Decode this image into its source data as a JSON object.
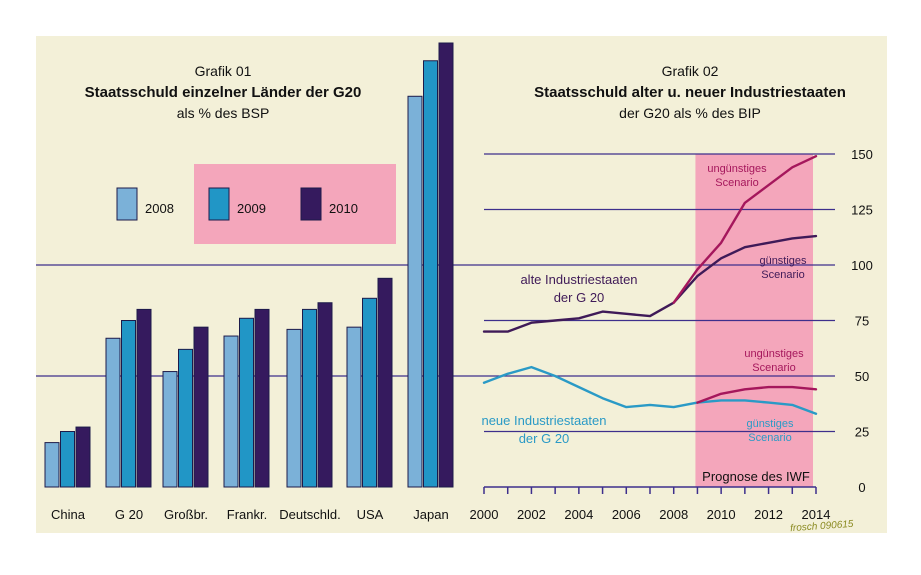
{
  "colors": {
    "background": "#f3f0d8",
    "grid": "#3d2f8c",
    "bar2008": "#7bb1d8",
    "bar2009": "#2196c6",
    "bar2010": "#351a5e",
    "bar_edge": "#1d1b4a",
    "prognosis": "#f4a6bb",
    "old_line": "#3f1a58",
    "new_line": "#2a9ac6",
    "bad_scenario": "#a5175c",
    "text": "#111111"
  },
  "chart_data": [
    {
      "type": "bar",
      "number": "Grafik 01",
      "title": "Staatsschuld einzelner Länder der G20",
      "subtitle": "als % des BSP",
      "categories": [
        "China",
        "G 20",
        "Großbr.",
        "Frankr.",
        "Deutschld.",
        "USA",
        "Japan"
      ],
      "series": [
        {
          "name": "2008",
          "color": "#7bb1d8",
          "values": [
            20,
            67,
            52,
            68,
            71,
            72,
            176
          ]
        },
        {
          "name": "2009",
          "color": "#2196c6",
          "values": [
            25,
            75,
            62,
            76,
            80,
            85,
            192
          ]
        },
        {
          "name": "2010",
          "color": "#351a5e",
          "values": [
            27,
            80,
            72,
            80,
            83,
            94,
            200
          ]
        }
      ],
      "ylim": [
        0,
        200
      ],
      "gridlines": [
        50,
        100
      ],
      "legend_position": "top-center"
    },
    {
      "type": "line",
      "number": "Grafik 02",
      "title": "Staatsschuld alter u. neuer Industriestaaten",
      "subtitle": "der G20 als % des BIP",
      "x_ticks": [
        "2000",
        "2002",
        "2004",
        "2006",
        "2008",
        "2010",
        "2012",
        "2014"
      ],
      "y_ticks": [
        "0",
        "25",
        "50",
        "75",
        "100",
        "125",
        "150"
      ],
      "xlim": [
        2000,
        2014
      ],
      "ylim": [
        0,
        150
      ],
      "series": [
        {
          "name": "alte Industriestaaten der G 20 (günstiges Scenario)",
          "color": "#3f1a58",
          "points": [
            [
              2000,
              70
            ],
            [
              2001,
              70
            ],
            [
              2002,
              74
            ],
            [
              2003,
              75
            ],
            [
              2004,
              76
            ],
            [
              2005,
              79
            ],
            [
              2006,
              78
            ],
            [
              2007,
              77
            ],
            [
              2008,
              83
            ],
            [
              2009,
              95
            ],
            [
              2010,
              103
            ],
            [
              2011,
              108
            ],
            [
              2012,
              110
            ],
            [
              2013,
              112
            ],
            [
              2014,
              113
            ]
          ]
        },
        {
          "name": "alte Industriestaaten ungünstiges Scenario",
          "color": "#a5175c",
          "points": [
            [
              2008,
              83
            ],
            [
              2009,
              98
            ],
            [
              2010,
              110
            ],
            [
              2011,
              128
            ],
            [
              2012,
              136
            ],
            [
              2013,
              144
            ],
            [
              2014,
              149
            ]
          ]
        },
        {
          "name": "neue Industriestaaten der G 20 (günstiges Scenario)",
          "color": "#2a9ac6",
          "points": [
            [
              2000,
              47
            ],
            [
              2001,
              51
            ],
            [
              2002,
              54
            ],
            [
              2003,
              50
            ],
            [
              2004,
              45
            ],
            [
              2005,
              40
            ],
            [
              2006,
              36
            ],
            [
              2007,
              37
            ],
            [
              2008,
              36
            ],
            [
              2009,
              38
            ],
            [
              2010,
              39
            ],
            [
              2011,
              39
            ],
            [
              2012,
              38
            ],
            [
              2013,
              37
            ],
            [
              2014,
              33
            ]
          ]
        },
        {
          "name": "neue Industriestaaten ungünstiges Scenario",
          "color": "#a5175c",
          "points": [
            [
              2009,
              38
            ],
            [
              2010,
              42
            ],
            [
              2011,
              44
            ],
            [
              2012,
              45
            ],
            [
              2013,
              45
            ],
            [
              2014,
              44
            ]
          ]
        }
      ],
      "prognosis_range": [
        2009,
        2014
      ],
      "prognosis_label": "Prognose des IWF",
      "annotations": {
        "old_label_1": "alte Industriestaaten",
        "old_label_2": "der G 20",
        "new_label_1": "neue Industriestaaten",
        "new_label_2": "der G 20",
        "old_bad_1": "ungünstiges",
        "old_bad_2": "Scenario",
        "old_good_1": "günstiges",
        "old_good_2": "Scenario",
        "new_bad_1": "ungünstiges",
        "new_bad_2": "Scenario",
        "new_good_1": "günstiges",
        "new_good_2": "Scenario"
      }
    }
  ],
  "signature": "frosch 090615"
}
